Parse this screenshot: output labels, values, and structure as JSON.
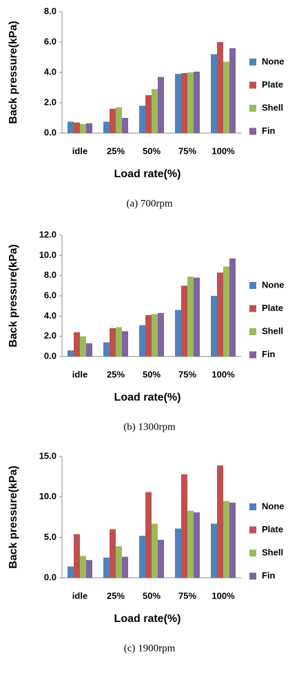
{
  "chart_data": [
    {
      "type": "bar",
      "caption": "(a)  700rpm",
      "xlabel": "Load rate(%)",
      "ylabel": "Back pressure(kPa)",
      "categories": [
        "idle",
        "25%",
        "50%",
        "75%",
        "100%"
      ],
      "series": [
        {
          "name": "None",
          "color": "#4f81bd",
          "values": [
            0.75,
            0.75,
            1.8,
            3.9,
            5.2
          ]
        },
        {
          "name": "Plate",
          "color": "#c0504d",
          "values": [
            0.7,
            1.6,
            2.5,
            3.95,
            6.0
          ]
        },
        {
          "name": "Shell",
          "color": "#9bbb59",
          "values": [
            0.6,
            1.7,
            2.9,
            4.0,
            4.7
          ]
        },
        {
          "name": "Fin",
          "color": "#8064a2",
          "values": [
            0.65,
            1.0,
            3.7,
            4.05,
            5.6
          ]
        }
      ],
      "ylim": [
        0,
        8
      ],
      "yticks": [
        {
          "value": 0,
          "label": "0.0"
        },
        {
          "value": 2,
          "label": "2.0"
        },
        {
          "value": 4,
          "label": "4.0"
        },
        {
          "value": 6,
          "label": "6.0"
        },
        {
          "value": 8,
          "label": "8.0"
        }
      ]
    },
    {
      "type": "bar",
      "caption": "(b)  1300rpm",
      "xlabel": "Load rate(%)",
      "ylabel": "Back pressure(kPa)",
      "categories": [
        "idle",
        "25%",
        "50%",
        "75%",
        "100%"
      ],
      "series": [
        {
          "name": "None",
          "color": "#4f81bd",
          "values": [
            0.6,
            1.4,
            3.1,
            4.6,
            6.0
          ]
        },
        {
          "name": "Plate",
          "color": "#c0504d",
          "values": [
            2.4,
            2.8,
            4.1,
            7.0,
            8.3
          ]
        },
        {
          "name": "Shell",
          "color": "#9bbb59",
          "values": [
            2.0,
            2.9,
            4.2,
            7.9,
            8.9
          ]
        },
        {
          "name": "Fin",
          "color": "#8064a2",
          "values": [
            1.3,
            2.5,
            4.3,
            7.8,
            9.7
          ]
        }
      ],
      "ylim": [
        0,
        12
      ],
      "yticks": [
        {
          "value": 0,
          "label": "0.0"
        },
        {
          "value": 2,
          "label": "2.0"
        },
        {
          "value": 4,
          "label": "4.0"
        },
        {
          "value": 6,
          "label": "6.0"
        },
        {
          "value": 8,
          "label": "8.0"
        },
        {
          "value": 10,
          "label": "10.0"
        },
        {
          "value": 12,
          "label": "12.0"
        }
      ]
    },
    {
      "type": "bar",
      "caption": "(c)  1900rpm",
      "xlabel": "Load rate(%)",
      "ylabel": "Back pressure(kPa)",
      "categories": [
        "idle",
        "25%",
        "50%",
        "75%",
        "100%"
      ],
      "series": [
        {
          "name": "None",
          "color": "#4f81bd",
          "values": [
            1.4,
            2.5,
            5.2,
            6.1,
            6.7
          ]
        },
        {
          "name": "Plate",
          "color": "#c0504d",
          "values": [
            5.4,
            6.0,
            10.6,
            12.8,
            13.9
          ]
        },
        {
          "name": "Shell",
          "color": "#9bbb59",
          "values": [
            2.7,
            3.9,
            6.7,
            8.3,
            9.5
          ]
        },
        {
          "name": "Fin",
          "color": "#8064a2",
          "values": [
            2.2,
            2.6,
            4.7,
            8.1,
            9.3
          ]
        }
      ],
      "ylim": [
        0,
        15
      ],
      "yticks": [
        {
          "value": 0,
          "label": "0.0"
        },
        {
          "value": 5,
          "label": "5.0"
        },
        {
          "value": 10,
          "label": "10.0"
        },
        {
          "value": 15,
          "label": "15.0"
        }
      ]
    }
  ]
}
